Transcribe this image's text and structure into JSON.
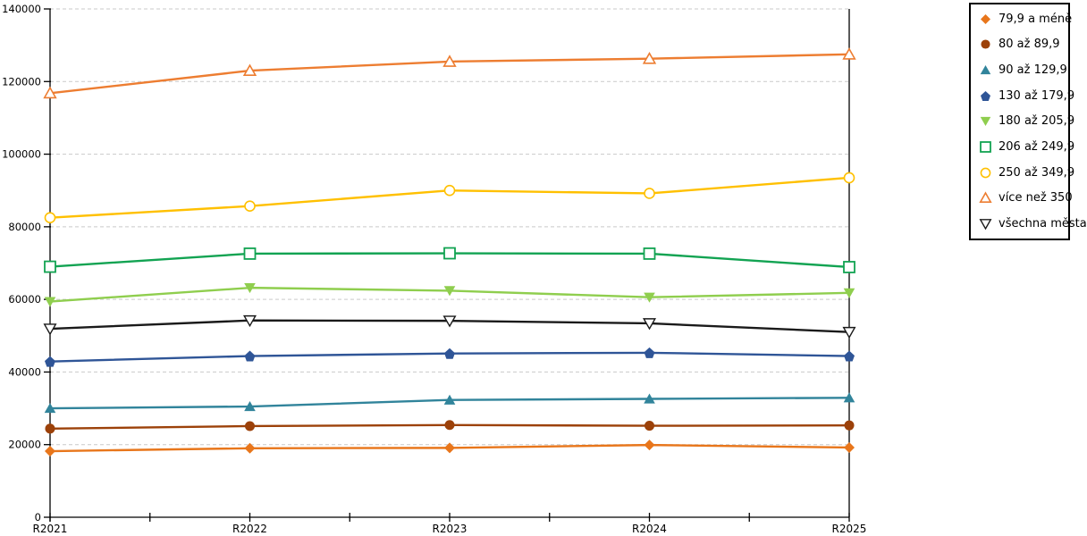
{
  "chart_data": {
    "type": "line",
    "title": "",
    "categories": [
      "R2021",
      "R2022",
      "R2023",
      "R2024",
      "R2025"
    ],
    "series": [
      {
        "name": "79,9 a méně",
        "color": "#E8761B",
        "marker": "diamond-filled",
        "values": [
          18200,
          19000,
          19100,
          19900,
          19200
        ]
      },
      {
        "name": "80 až 89,9",
        "color": "#9C4109",
        "marker": "circle-filled",
        "values": [
          24400,
          25100,
          25400,
          25200,
          25300
        ]
      },
      {
        "name": "90 až 129,9",
        "color": "#31849B",
        "marker": "triangle-up-filled",
        "values": [
          30000,
          30500,
          32300,
          32600,
          32900
        ]
      },
      {
        "name": "130 až 179,9",
        "color": "#2F5597",
        "marker": "pentagon-filled",
        "values": [
          42900,
          44400,
          45100,
          45300,
          44400
        ]
      },
      {
        "name": "180 až 205,9",
        "color": "#8FCE4E",
        "marker": "triangle-down-filled",
        "values": [
          59400,
          63200,
          62400,
          60600,
          61800
        ]
      },
      {
        "name": "206 až 249,9",
        "color": "#12A352",
        "marker": "square-open",
        "values": [
          69000,
          72600,
          72700,
          72600,
          68900
        ]
      },
      {
        "name": "250 až 349,9",
        "color": "#FFC000",
        "marker": "circle-open",
        "values": [
          82500,
          85700,
          90000,
          89200,
          93500
        ]
      },
      {
        "name": "více než 350",
        "color": "#ED7D31",
        "marker": "triangle-up-open",
        "values": [
          116800,
          123000,
          125500,
          126300,
          127500
        ]
      },
      {
        "name": "všechna města",
        "color": "#1A1A1A",
        "marker": "triangle-down-open",
        "values": [
          51900,
          54200,
          54100,
          53400,
          51000
        ]
      }
    ],
    "xlabel": "",
    "ylabel": "",
    "ylim": [
      0,
      140000
    ],
    "y_tick_step": 20000,
    "y_tick_labels": [
      "0",
      "20000",
      "40000",
      "60000",
      "80000",
      "100000",
      "120000",
      "140000"
    ],
    "grid": "dashed-horizontal",
    "legend_position": "right"
  },
  "colors": {
    "background": "#ffffff",
    "grid": "#c9c9c9",
    "axis": "#000000"
  }
}
